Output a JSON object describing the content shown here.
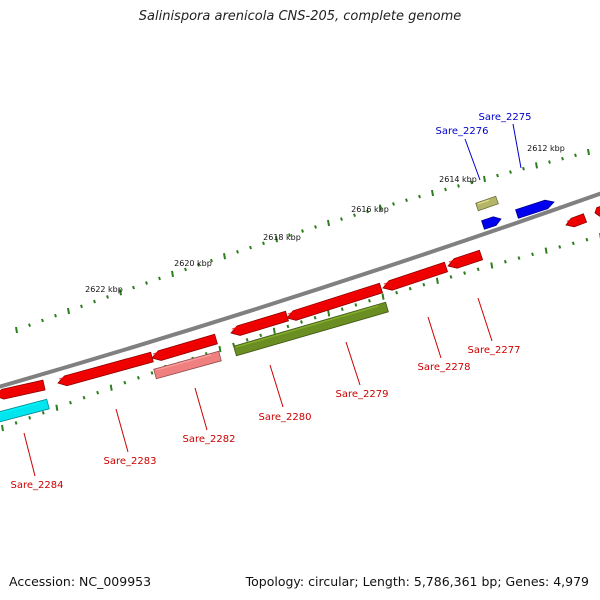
{
  "title": "Salinispora arenicola CNS-205, complete genome",
  "footer": {
    "accession": "Accession: NC_009953",
    "summary": "Topology: circular; Length: 5,786,361 bp; Genes: 4,979"
  },
  "colors": {
    "backbone": "#808080",
    "tick": "#2e7d1e",
    "forward_label": "#0000cc",
    "reverse_label": "#cc0000"
  },
  "kbp_labels": [
    "2612 kbp",
    "2614 kbp",
    "2616 kbp",
    "2618 kbp",
    "2620 kbp",
    "2622 kbp"
  ],
  "genes": [
    {
      "name": "Sare_2275",
      "strand": "forward",
      "color": "#0000ee"
    },
    {
      "name": "Sare_2276",
      "strand": "forward",
      "color": "#0000ee"
    },
    {
      "name": "",
      "strand": "forward",
      "color": "#b5b56a"
    },
    {
      "name": "Sare_2277",
      "strand": "reverse",
      "color": "#ee0000"
    },
    {
      "name": "Sare_2278",
      "strand": "reverse",
      "color": "#ee0000"
    },
    {
      "name": "Sare_2279",
      "strand": "reverse",
      "color": "#6b8e23"
    },
    {
      "name": "Sare_2280",
      "strand": "reverse",
      "color": "#ee0000"
    },
    {
      "name": "Sare_2282",
      "strand": "reverse",
      "color": "#f08080"
    },
    {
      "name": "Sare_2283",
      "strand": "reverse",
      "color": "#ee0000"
    },
    {
      "name": "Sare_2284",
      "strand": "reverse",
      "color": "#00e5ee"
    }
  ]
}
